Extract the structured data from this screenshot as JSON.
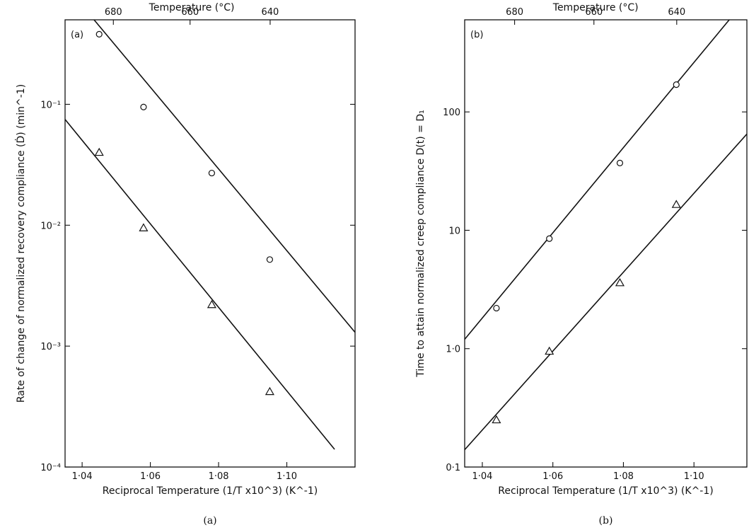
{
  "chart_data": [
    {
      "type": "scatter",
      "panel_label": "(a)",
      "caption": "(a)",
      "xlabel": "Reciprocal Temperature (1/T x10^3) (K^-1)",
      "ylabel": "Rate of change of normalized recovery compliance (Ḋ) (min^-1)",
      "top_axis_label": "Temperature (°C)",
      "y_scale": "log",
      "xlim": [
        1.035,
        1.12
      ],
      "ylim": [
        0.0001,
        0.5
      ],
      "x_ticks": [
        1.04,
        1.06,
        1.08,
        1.1
      ],
      "x_tick_labels": [
        "1·04",
        "1·06",
        "1·08",
        "1·10"
      ],
      "y_ticks": [
        0.0001,
        0.001,
        0.01,
        0.1
      ],
      "y_tick_labels": [
        "10⁻⁴",
        "10⁻³",
        "10⁻²",
        "10⁻¹"
      ],
      "top_ticks": [
        680,
        660,
        640
      ],
      "top_tick_labels": [
        "680",
        "660",
        "640"
      ],
      "series": [
        {
          "marker": "circle",
          "x": [
            1.045,
            1.058,
            1.078,
            1.095
          ],
          "y": [
            0.38,
            0.095,
            0.027,
            0.0052
          ],
          "fit": {
            "x": [
              1.0435,
              1.12
            ],
            "y": [
              0.5,
              0.0013
            ]
          }
        },
        {
          "marker": "triangle",
          "x": [
            1.045,
            1.058,
            1.078,
            1.095
          ],
          "y": [
            0.04,
            0.0095,
            0.0022,
            0.00042
          ],
          "fit": {
            "x": [
              1.035,
              1.114
            ],
            "y": [
              0.075,
              0.00014
            ]
          }
        }
      ]
    },
    {
      "type": "scatter",
      "panel_label": "(b)",
      "caption": "(b)",
      "xlabel": "Reciprocal Temperature (1/T x10^3) (K^-1)",
      "ylabel": "Time to attain normalized creep compliance D(t) = D₁",
      "top_axis_label": "Temperature (°C)",
      "y_scale": "log",
      "xlim": [
        1.035,
        1.115
      ],
      "ylim": [
        0.1,
        600
      ],
      "x_ticks": [
        1.04,
        1.06,
        1.08,
        1.1
      ],
      "x_tick_labels": [
        "1·04",
        "1·06",
        "1·08",
        "1·10"
      ],
      "y_ticks": [
        0.1,
        1,
        10,
        100
      ],
      "y_tick_labels": [
        "0·1",
        "1·0",
        "10",
        "100"
      ],
      "top_ticks": [
        680,
        660,
        640
      ],
      "top_tick_labels": [
        "680",
        "660",
        "640"
      ],
      "series": [
        {
          "marker": "circle",
          "x": [
            1.044,
            1.059,
            1.079,
            1.095
          ],
          "y": [
            2.2,
            8.5,
            37,
            170
          ],
          "fit": {
            "x": [
              1.035,
              1.11
            ],
            "y": [
              1.2,
              600
            ]
          }
        },
        {
          "marker": "triangle",
          "x": [
            1.044,
            1.059,
            1.079,
            1.095
          ],
          "y": [
            0.25,
            0.95,
            3.6,
            16.5
          ],
          "fit": {
            "x": [
              1.035,
              1.115
            ],
            "y": [
              0.14,
              65
            ]
          }
        }
      ]
    }
  ]
}
